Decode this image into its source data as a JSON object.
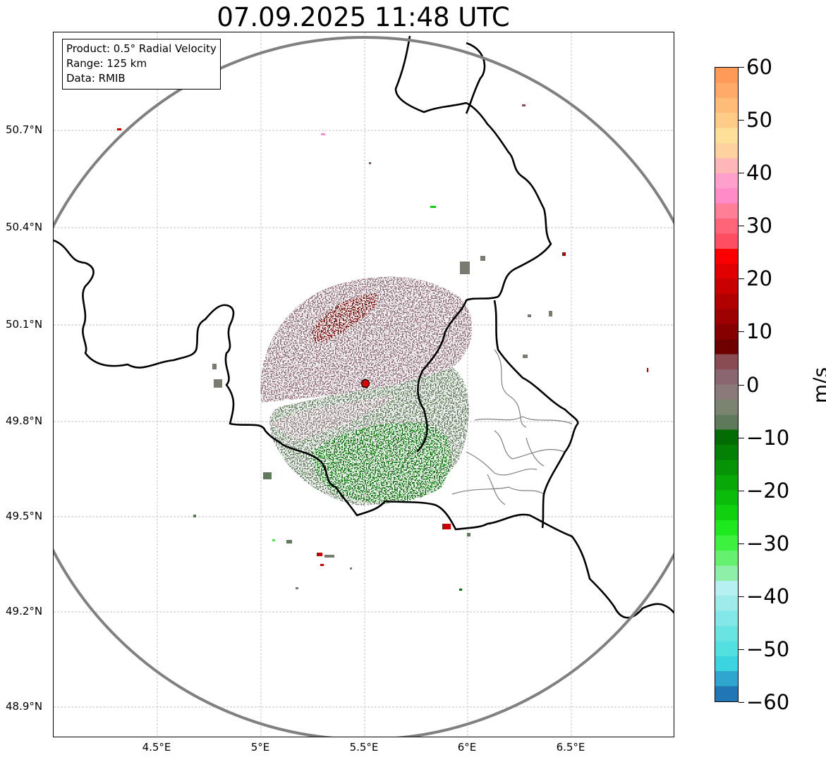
{
  "title": "07.09.2025 11:48 UTC",
  "info_box": {
    "product": "Product: 0.5° Radial Velocity",
    "range": "Range: 125 km",
    "data": "Data: RMIB"
  },
  "lat_ticks": [
    "50.7°N",
    "50.4°N",
    "50.1°N",
    "49.8°N",
    "49.5°N",
    "49.2°N",
    "48.9°N"
  ],
  "lon_ticks": [
    "4.5°E",
    "5°E",
    "5.5°E",
    "6°E",
    "6.5°E"
  ],
  "colorbar": {
    "unit": "m/s",
    "min": -60,
    "max": 60,
    "labels": [
      "60",
      "50",
      "40",
      "30",
      "20",
      "10",
      "0",
      "−10",
      "−20",
      "−30",
      "−40",
      "−50",
      "−60"
    ],
    "colors": [
      "#2077b4",
      "#2ea6d0",
      "#3cd4e0",
      "#52e0e0",
      "#6ae3e3",
      "#84e7e7",
      "#9eebeb",
      "#b6f0f0",
      "#8ef0a8",
      "#66f070",
      "#3ef040",
      "#1ee81e",
      "#10d010",
      "#0cbc0c",
      "#08a808",
      "#069406",
      "#048004",
      "#036c03",
      "#5e7a5a",
      "#7a8470",
      "#8a7a7a",
      "#8a6670",
      "#884c52",
      "#6e0000",
      "#860000",
      "#9c0000",
      "#b00000",
      "#c80000",
      "#e00000",
      "#fb0000",
      "#ff4d62",
      "#ff6478",
      "#ff7e98",
      "#ff8cc8",
      "#ffa0cc",
      "#ffb6b6",
      "#ffd2a0",
      "#ffe098",
      "#ffcc88",
      "#ffbb78",
      "#ffaa68",
      "#ff9a58"
    ]
  },
  "radar_site": {
    "name": "radar",
    "lon": 5.5,
    "lat": 49.915,
    "marker_color": "#e00000"
  },
  "map_extent": {
    "lon_min": 4.0,
    "lon_max": 7.0,
    "lat_min": 48.8,
    "lat_max": 50.98
  },
  "range_ring_km": 125,
  "colors": {
    "ring": "#808080",
    "border": "#000000",
    "admin": "#808080",
    "grid": "#b0b0b0"
  }
}
